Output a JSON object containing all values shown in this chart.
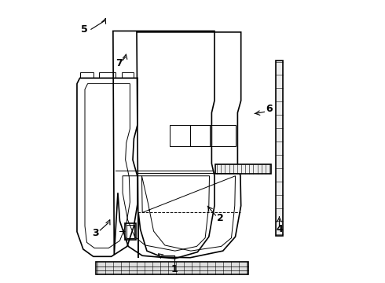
{
  "bg_color": "#ffffff",
  "line_color": "#000000",
  "lw_main": 1.2,
  "lw_thin": 0.7,
  "lw_extra": 0.4,
  "label_fontsize": 9,
  "figsize": [
    4.9,
    3.6
  ],
  "dpi": 100
}
